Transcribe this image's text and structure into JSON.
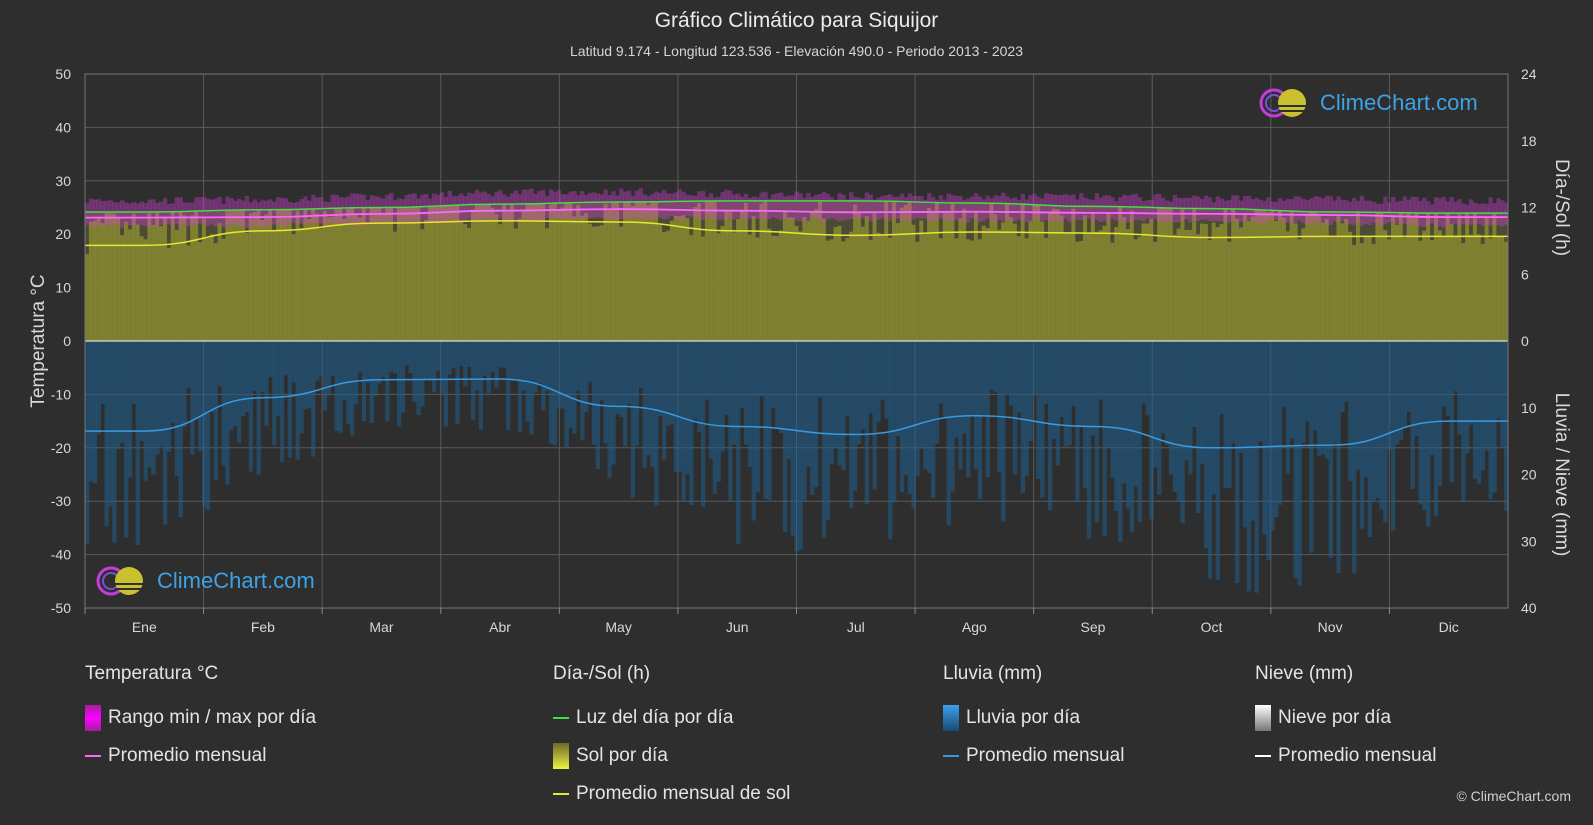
{
  "header": {
    "title": "Gráfico Climático para Siquijor",
    "subtitle": "Latitud 9.174 - Longitud 123.536 - Elevación 490.0 - Periodo 2013 - 2023"
  },
  "branding": {
    "logo_text": "ClimeChart.com",
    "copyright": "© ClimeChart.com"
  },
  "colors": {
    "background": "#2e2e2e",
    "temp_range": "#e040e0",
    "temp_avg": "#ff66ff",
    "daylight": "#44dd44",
    "sunshine_fill": "#8a8a30",
    "sunshine_avg": "#e8e833",
    "rain_fill": "#1f5f8f",
    "rain_avg": "#3a9ae0",
    "snow_avg": "#ffffff"
  },
  "chart_data": {
    "type": "area",
    "categories": [
      "Ene",
      "Feb",
      "Mar",
      "Abr",
      "May",
      "Jun",
      "Jul",
      "Ago",
      "Sep",
      "Oct",
      "Nov",
      "Dic"
    ],
    "axes": {
      "left": {
        "label": "Temperatura °C",
        "range": [
          -50,
          50
        ],
        "ticks": [
          50,
          40,
          30,
          20,
          10,
          0,
          -10,
          -20,
          -30,
          -40,
          -50
        ]
      },
      "right_top": {
        "label": "Día-/Sol (h)",
        "range": [
          0,
          24
        ],
        "ticks": [
          24,
          18,
          12,
          6,
          0
        ]
      },
      "right_bottom": {
        "label": "Lluvia / Nieve (mm)",
        "range": [
          0,
          40
        ],
        "ticks": [
          0,
          10,
          20,
          30,
          40
        ]
      }
    },
    "grid": true,
    "series": [
      {
        "name": "Luz del día por día",
        "unit": "h",
        "values": [
          11.6,
          11.8,
          12.0,
          12.3,
          12.5,
          12.6,
          12.6,
          12.4,
          12.1,
          11.9,
          11.6,
          11.5
        ]
      },
      {
        "name": "Promedio mensual de sol",
        "unit": "h",
        "values": [
          8.6,
          9.9,
          10.6,
          10.8,
          10.7,
          9.9,
          9.5,
          9.8,
          9.7,
          9.3,
          9.4,
          9.4
        ]
      },
      {
        "name": "Promedio mensual",
        "group": "Temperatura °C",
        "unit": "°C",
        "values": [
          23.1,
          23.2,
          23.8,
          24.4,
          24.7,
          24.4,
          24.1,
          24.2,
          24.0,
          23.8,
          23.6,
          23.2
        ]
      },
      {
        "name": "Rango min / max por día",
        "unit": "°C",
        "min": [
          22.0,
          22.0,
          22.5,
          23.0,
          23.5,
          23.3,
          23.0,
          23.0,
          23.0,
          22.8,
          22.5,
          22.0
        ],
        "max": [
          25.5,
          25.7,
          26.3,
          27.0,
          27.2,
          26.8,
          26.4,
          26.4,
          26.2,
          26.0,
          25.8,
          25.5
        ]
      },
      {
        "name": "Promedio mensual",
        "group": "Lluvia (mm)",
        "unit": "mm",
        "values": [
          13.5,
          8.5,
          5.8,
          5.7,
          9.8,
          12.8,
          14.0,
          11.2,
          12.8,
          16.0,
          15.6,
          12.0
        ]
      }
    ]
  },
  "legend": {
    "temperature": {
      "heading": "Temperatura °C",
      "items": [
        "Rango min / max por día",
        "Promedio mensual"
      ]
    },
    "sun": {
      "heading": "Día-/Sol (h)",
      "items": [
        "Luz del día por día",
        "Sol por día",
        "Promedio mensual de sol"
      ]
    },
    "rain": {
      "heading": "Lluvia (mm)",
      "items": [
        "Lluvia por día",
        "Promedio mensual"
      ]
    },
    "snow": {
      "heading": "Nieve (mm)",
      "items": [
        "Nieve por día",
        "Promedio mensual"
      ]
    }
  }
}
